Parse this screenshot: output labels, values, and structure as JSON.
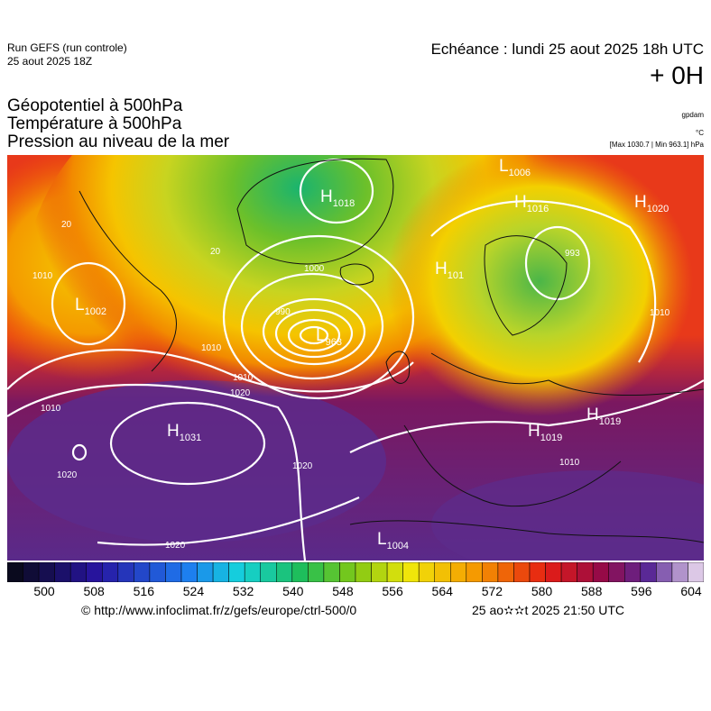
{
  "header": {
    "run": "Run GEFS (run controle)",
    "run_date": "25 aout 2025 18Z",
    "echeance": "Echéance : lundi 25 aout 2025 18h UTC",
    "lead": "+ 0H"
  },
  "fields": [
    "Géopotentiel à 500hPa",
    "Température à 500hPa",
    "Pression au niveau de la mer"
  ],
  "units": [
    "gpdam",
    "°C",
    "[Max 1030.7 | Min 963.1] hPa"
  ],
  "centers": [
    {
      "letter": "H",
      "value": "1018"
    },
    {
      "letter": "L",
      "value": "1006"
    },
    {
      "letter": "H",
      "value": "1016"
    },
    {
      "letter": "H",
      "value": "1020"
    },
    {
      "letter": "L",
      "value": "1002"
    },
    {
      "letter": "H",
      "value": "101"
    },
    {
      "letter": "L",
      "value": "963"
    },
    {
      "letter": "H",
      "value": "1031"
    },
    {
      "letter": "H",
      "value": "1019"
    },
    {
      "letter": "H",
      "value": "1019"
    },
    {
      "letter": "L",
      "value": "1004"
    }
  ],
  "contour_labels": [
    "1010",
    "1010",
    "1020",
    "1010",
    "1020",
    "1020",
    "1020",
    "1000",
    "990",
    "1010",
    "1010",
    "993",
    "20",
    "20",
    "1010"
  ],
  "colorbar": {
    "ticks": [
      500,
      508,
      516,
      524,
      532,
      540,
      548,
      556,
      564,
      572,
      580,
      588,
      596,
      604
    ]
  },
  "footer": {
    "url": "© http://www.infoclimat.fr/z/gefs/europe/ctrl-500/0",
    "timestamp": "25 ao✫✫t 2025 21:50 UTC"
  }
}
